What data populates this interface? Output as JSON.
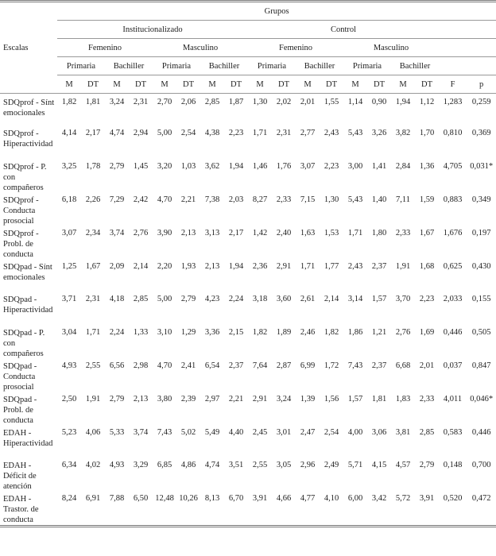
{
  "header": {
    "scales": "Escalas",
    "groups": "Grupos",
    "row2": [
      "Institucionalizado",
      "Control"
    ],
    "row3": [
      "Femenino",
      "Masculino",
      "Femenino",
      "Masculino"
    ],
    "row4": [
      "Primaria",
      "Bachiller",
      "Primaria",
      "Bachiller",
      "Primaria",
      "Bachiller",
      "Primaria",
      "Bachiller"
    ],
    "row5": [
      "M",
      "DT",
      "M",
      "DT",
      "M",
      "DT",
      "M",
      "DT",
      "M",
      "DT",
      "M",
      "DT",
      "M",
      "DT",
      "M",
      "DT",
      "F",
      "p"
    ]
  },
  "table": {
    "rows": [
      [
        "SDQprof - Sínt emocionales",
        "1,82",
        "1,81",
        "3,24",
        "2,31",
        "2,70",
        "2,06",
        "2,85",
        "1,87",
        "1,30",
        "2,02",
        "2,01",
        "1,55",
        "1,14",
        "0,90",
        "1,94",
        "1,12",
        "1,283",
        "0,259"
      ],
      [
        "SDQprof - Hiperactividad",
        "4,14",
        "2,17",
        "4,74",
        "2,94",
        "5,00",
        "2,54",
        "4,38",
        "2,23",
        "1,71",
        "2,31",
        "2,77",
        "2,43",
        "5,43",
        "3,26",
        "3,82",
        "1,70",
        "0,810",
        "0,369"
      ],
      [
        "SDQprof - P. con compañeros",
        "3,25",
        "1,78",
        "2,79",
        "1,45",
        "3,20",
        "1,03",
        "3,62",
        "1,94",
        "1,46",
        "1,76",
        "3,07",
        "2,23",
        "3,00",
        "1,41",
        "2,84",
        "1,36",
        "4,705",
        "0,031*"
      ],
      [
        "SDQprof - Conducta prosocial",
        "6,18",
        "2,26",
        "7,29",
        "2,42",
        "4,70",
        "2,21",
        "7,38",
        "2,03",
        "8,27",
        "2,33",
        "7,15",
        "1,30",
        "5,43",
        "1,40",
        "7,11",
        "1,59",
        "0,883",
        "0,349"
      ],
      [
        "SDQprof - Probl. de conducta",
        "3,07",
        "2,34",
        "3,74",
        "2,76",
        "3,90",
        "2,13",
        "3,13",
        "2,17",
        "1,42",
        "2,40",
        "1,63",
        "1,53",
        "1,71",
        "1,80",
        "2,33",
        "1,67",
        "1,676",
        "0,197"
      ],
      [
        "SDQpad - Sínt emocionales",
        "1,25",
        "1,67",
        "2,09",
        "2,14",
        "2,20",
        "1,93",
        "2,13",
        "1,94",
        "2,36",
        "2,91",
        "1,71",
        "1,77",
        "2,43",
        "2,37",
        "1,91",
        "1,68",
        "0,625",
        "0,430"
      ],
      [
        "SDQpad - Hiperactividad",
        "3,71",
        "2,31",
        "4,18",
        "2,85",
        "5,00",
        "2,79",
        "4,23",
        "2,24",
        "3,18",
        "3,60",
        "2,61",
        "2,14",
        "3,14",
        "1,57",
        "3,70",
        "2,23",
        "2,033",
        "0,155"
      ],
      [
        "SDQpad - P. con compañeros",
        "3,04",
        "1,71",
        "2,24",
        "1,33",
        "3,10",
        "1,29",
        "3,36",
        "2,15",
        "1,82",
        "1,89",
        "2,46",
        "1,82",
        "1,86",
        "1,21",
        "2,76",
        "1,69",
        "0,446",
        "0,505"
      ],
      [
        "SDQpad - Conducta prosocial",
        "4,93",
        "2,55",
        "6,56",
        "2,98",
        "4,70",
        "2,41",
        "6,54",
        "2,37",
        "7,64",
        "2,87",
        "6,99",
        "1,72",
        "7,43",
        "2,37",
        "6,68",
        "2,01",
        "0,037",
        "0,847"
      ],
      [
        "SDQpad - Probl. de conducta",
        "2,50",
        "1,91",
        "2,79",
        "2,13",
        "3,80",
        "2,39",
        "2,97",
        "2,21",
        "2,91",
        "3,24",
        "1,39",
        "1,56",
        "1,57",
        "1,81",
        "1,83",
        "2,33",
        "4,011",
        "0,046*"
      ],
      [
        "EDAH - Hiperactividad",
        "5,23",
        "4,06",
        "5,33",
        "3,74",
        "7,43",
        "5,02",
        "5,49",
        "4,40",
        "2,45",
        "3,01",
        "2,47",
        "2,54",
        "4,00",
        "3,06",
        "3,81",
        "2,85",
        "0,583",
        "0,446"
      ],
      [
        "EDAH - Déficit de atención",
        "6,34",
        "4,02",
        "4,93",
        "3,29",
        "6,85",
        "4,86",
        "4,74",
        "3,51",
        "2,55",
        "3,05",
        "2,96",
        "2,49",
        "5,71",
        "4,15",
        "4,57",
        "2,79",
        "0,148",
        "0,700"
      ],
      [
        "EDAH - Trastor. de conducta",
        "8,24",
        "6,91",
        "7,88",
        "6,50",
        "12,48",
        "10,26",
        "8,13",
        "6,70",
        "3,91",
        "4,66",
        "4,77",
        "4,10",
        "6,00",
        "3,42",
        "5,72",
        "3,91",
        "0,520",
        "0,472"
      ]
    ]
  }
}
